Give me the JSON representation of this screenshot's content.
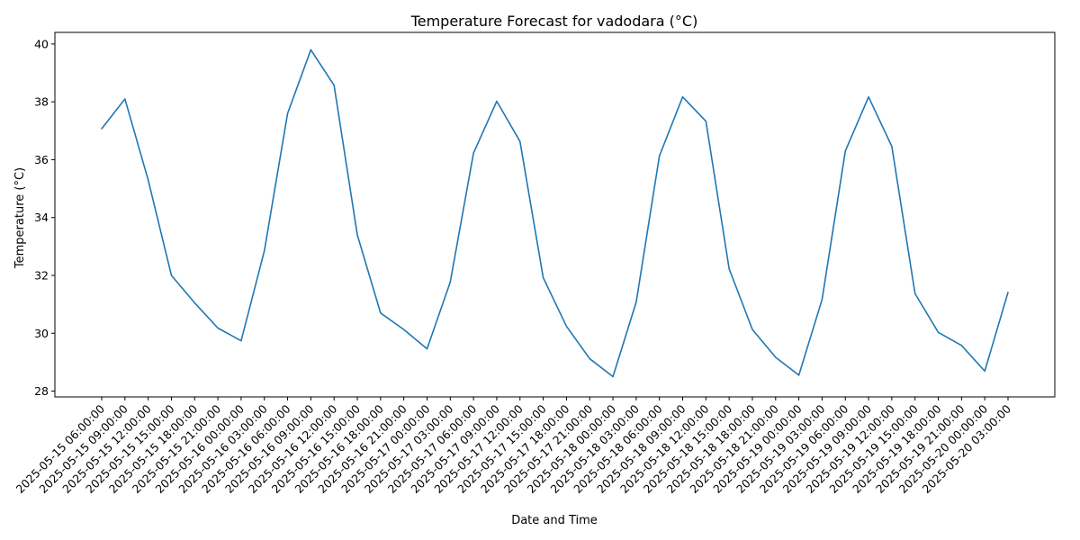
{
  "chart_data": {
    "type": "line",
    "title": "Temperature Forecast for vadodara (°C)",
    "xlabel": "Date and Time",
    "ylabel": "Temperature (°C)",
    "ylim": [
      27.8,
      40.4
    ],
    "yticks": [
      28,
      30,
      32,
      34,
      36,
      38,
      40
    ],
    "grid": false,
    "line_color": "#1f77b4",
    "x": [
      "2025-05-15 06:00:00",
      "2025-05-15 09:00:00",
      "2025-05-15 12:00:00",
      "2025-05-15 15:00:00",
      "2025-05-15 18:00:00",
      "2025-05-15 21:00:00",
      "2025-05-16 00:00:00",
      "2025-05-16 03:00:00",
      "2025-05-16 06:00:00",
      "2025-05-16 09:00:00",
      "2025-05-16 12:00:00",
      "2025-05-16 15:00:00",
      "2025-05-16 18:00:00",
      "2025-05-16 21:00:00",
      "2025-05-17 00:00:00",
      "2025-05-17 03:00:00",
      "2025-05-17 06:00:00",
      "2025-05-17 09:00:00",
      "2025-05-17 12:00:00",
      "2025-05-17 15:00:00",
      "2025-05-17 18:00:00",
      "2025-05-17 21:00:00",
      "2025-05-18 00:00:00",
      "2025-05-18 03:00:00",
      "2025-05-18 06:00:00",
      "2025-05-18 09:00:00",
      "2025-05-18 12:00:00",
      "2025-05-18 15:00:00",
      "2025-05-18 18:00:00",
      "2025-05-18 21:00:00",
      "2025-05-19 00:00:00",
      "2025-05-19 03:00:00",
      "2025-05-19 06:00:00",
      "2025-05-19 09:00:00",
      "2025-05-19 12:00:00",
      "2025-05-19 15:00:00",
      "2025-05-19 18:00:00",
      "2025-05-19 21:00:00",
      "2025-05-20 00:00:00",
      "2025-05-20 03:00:00"
    ],
    "series": [
      {
        "values": [
          37.07,
          38.1,
          35.3,
          32.0,
          31.05,
          30.18,
          29.74,
          32.85,
          37.6,
          39.8,
          38.57,
          33.4,
          30.7,
          30.13,
          29.46,
          31.77,
          36.23,
          38.02,
          36.63,
          31.92,
          30.24,
          29.12,
          28.5,
          31.07,
          36.13,
          38.17,
          37.33,
          32.23,
          30.13,
          29.17,
          28.55,
          31.17,
          36.3,
          38.17,
          36.46,
          31.37,
          30.03,
          29.58,
          28.69,
          31.41
        ]
      }
    ]
  }
}
